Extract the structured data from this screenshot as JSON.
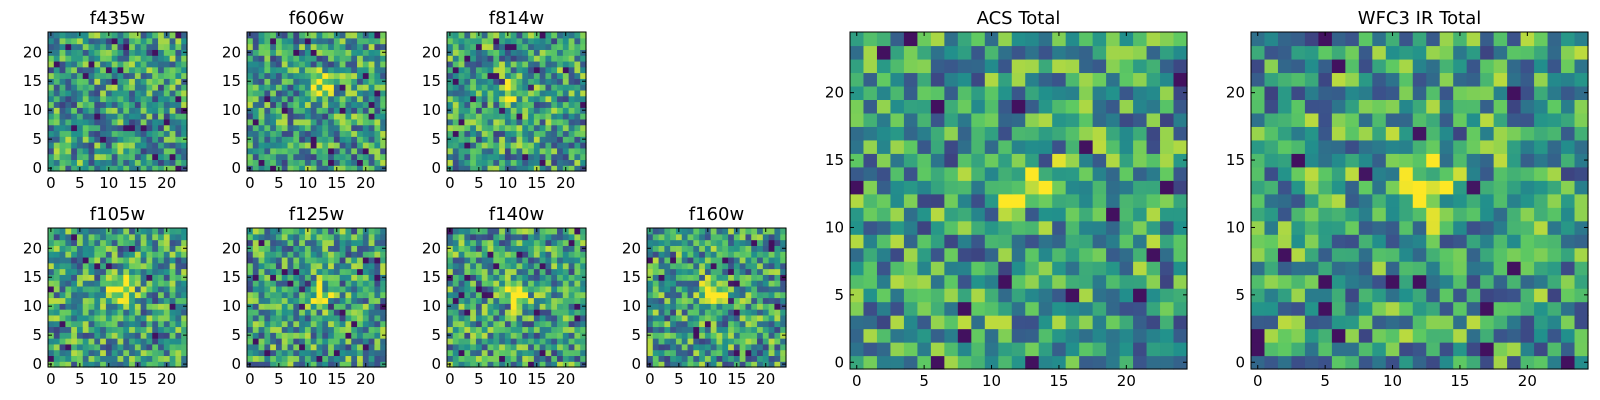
{
  "chart_data": [
    {
      "type": "heatmap",
      "title": "f435w",
      "xticks": [
        0,
        5,
        10,
        15,
        20
      ],
      "yticks": [
        0,
        5,
        10,
        15,
        20
      ],
      "xlim": [
        -0.5,
        23.5
      ],
      "ylim": [
        -0.5,
        23.5
      ],
      "grid": [
        24,
        24
      ],
      "colormap": "viridis",
      "bright_center": null,
      "seed": 11
    },
    {
      "type": "heatmap",
      "title": "f606w",
      "xticks": [
        0,
        5,
        10,
        15,
        20
      ],
      "yticks": [
        0,
        5,
        10,
        15,
        20
      ],
      "xlim": [
        -0.5,
        23.5
      ],
      "ylim": [
        -0.5,
        23.5
      ],
      "grid": [
        24,
        24
      ],
      "colormap": "viridis",
      "bright_center": [
        12,
        14
      ],
      "seed": 23
    },
    {
      "type": "heatmap",
      "title": "f814w",
      "xticks": [
        0,
        5,
        10,
        15,
        20
      ],
      "yticks": [
        0,
        5,
        10,
        15,
        20
      ],
      "xlim": [
        -0.5,
        23.5
      ],
      "ylim": [
        -0.5,
        23.5
      ],
      "grid": [
        24,
        24
      ],
      "colormap": "viridis",
      "bright_center": [
        11,
        13
      ],
      "seed": 37
    },
    {
      "type": "heatmap",
      "title": "f105w",
      "xticks": [
        0,
        5,
        10,
        15,
        20
      ],
      "yticks": [
        0,
        5,
        10,
        15,
        20
      ],
      "xlim": [
        -0.5,
        23.5
      ],
      "ylim": [
        -0.5,
        23.5
      ],
      "grid": [
        24,
        24
      ],
      "colormap": "viridis",
      "bright_center": [
        12,
        13
      ],
      "seed": 41
    },
    {
      "type": "heatmap",
      "title": "f125w",
      "xticks": [
        0,
        5,
        10,
        15,
        20
      ],
      "yticks": [
        0,
        5,
        10,
        15,
        20
      ],
      "xlim": [
        -0.5,
        23.5
      ],
      "ylim": [
        -0.5,
        23.5
      ],
      "grid": [
        24,
        24
      ],
      "colormap": "viridis",
      "bright_center": [
        12,
        12
      ],
      "seed": 53
    },
    {
      "type": "heatmap",
      "title": "f140w",
      "xticks": [
        0,
        5,
        10,
        15,
        20
      ],
      "yticks": [
        0,
        5,
        10,
        15,
        20
      ],
      "xlim": [
        -0.5,
        23.5
      ],
      "ylim": [
        -0.5,
        23.5
      ],
      "grid": [
        24,
        24
      ],
      "colormap": "viridis",
      "bright_center": [
        11,
        12
      ],
      "seed": 67
    },
    {
      "type": "heatmap",
      "title": "f160w",
      "xticks": [
        0,
        5,
        10,
        15,
        20
      ],
      "yticks": [
        0,
        5,
        10,
        15,
        20
      ],
      "xlim": [
        -0.5,
        23.5
      ],
      "ylim": [
        -0.5,
        23.5
      ],
      "grid": [
        24,
        24
      ],
      "colormap": "viridis",
      "bright_center": [
        11,
        12
      ],
      "seed": 79
    },
    {
      "type": "heatmap",
      "title": "ACS Total",
      "xticks": [
        0,
        5,
        10,
        15,
        20
      ],
      "yticks": [
        0,
        5,
        10,
        15,
        20
      ],
      "xlim": [
        -0.5,
        24.5
      ],
      "ylim": [
        -0.5,
        24.5
      ],
      "grid": [
        25,
        25
      ],
      "colormap": "viridis",
      "bright_center": [
        13,
        13
      ],
      "seed": 97
    },
    {
      "type": "heatmap",
      "title": "WFC3 IR Total",
      "xticks": [
        0,
        5,
        10,
        15,
        20
      ],
      "yticks": [
        0,
        5,
        10,
        15,
        20
      ],
      "xlim": [
        -0.5,
        24.5
      ],
      "ylim": [
        -0.5,
        24.5
      ],
      "grid": [
        25,
        25
      ],
      "colormap": "viridis",
      "bright_center": [
        12,
        13
      ],
      "seed": 131
    }
  ],
  "colors": {
    "low": "#440154",
    "mid_low": "#31688e",
    "mid": "#21918c",
    "mid_high": "#5ec962",
    "high": "#fde725"
  }
}
